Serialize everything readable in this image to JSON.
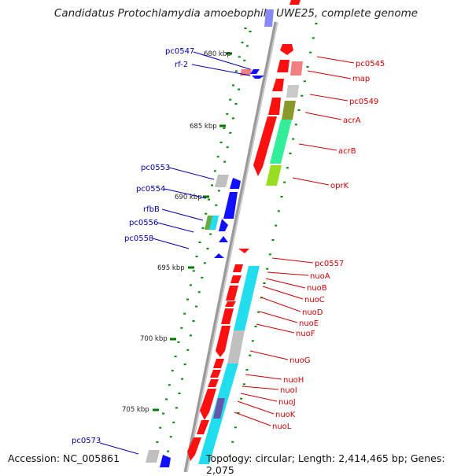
{
  "title": "Candidatus Protochlamydia amoebophila UWE25, complete genome",
  "accession": "Accession: NC_005861",
  "topology": "Topology: circular; Length: 2,414,465 bp; Genes: 2,075",
  "colors": {
    "forward_gene": "#ff0000",
    "reverse_gene": "#0000ff",
    "backbone": "#8a8a8a",
    "tick": "#008800",
    "forward_label": "#cc0000",
    "reverse_label": "#0000aa"
  },
  "scale_labels": [
    "680 kbp",
    "685 kbp",
    "690 kbp",
    "695 kbp",
    "700 kbp",
    "705 kbp"
  ],
  "right_labels": [
    "pc0545",
    "map",
    "pc0549",
    "acrA",
    "acrB",
    "oprK",
    "pc0557",
    "nuoA",
    "nuoB",
    "nuoC",
    "nuoD",
    "nuoE",
    "nuoF",
    "nuoG",
    "nuoH",
    "nuoI",
    "nuoJ",
    "nuoK",
    "nuoL"
  ],
  "left_labels": [
    "pc0547",
    "rf-2",
    "pc0553",
    "pc0554",
    "rfbB",
    "pc0556",
    "pc0558",
    "pc0573"
  ]
}
